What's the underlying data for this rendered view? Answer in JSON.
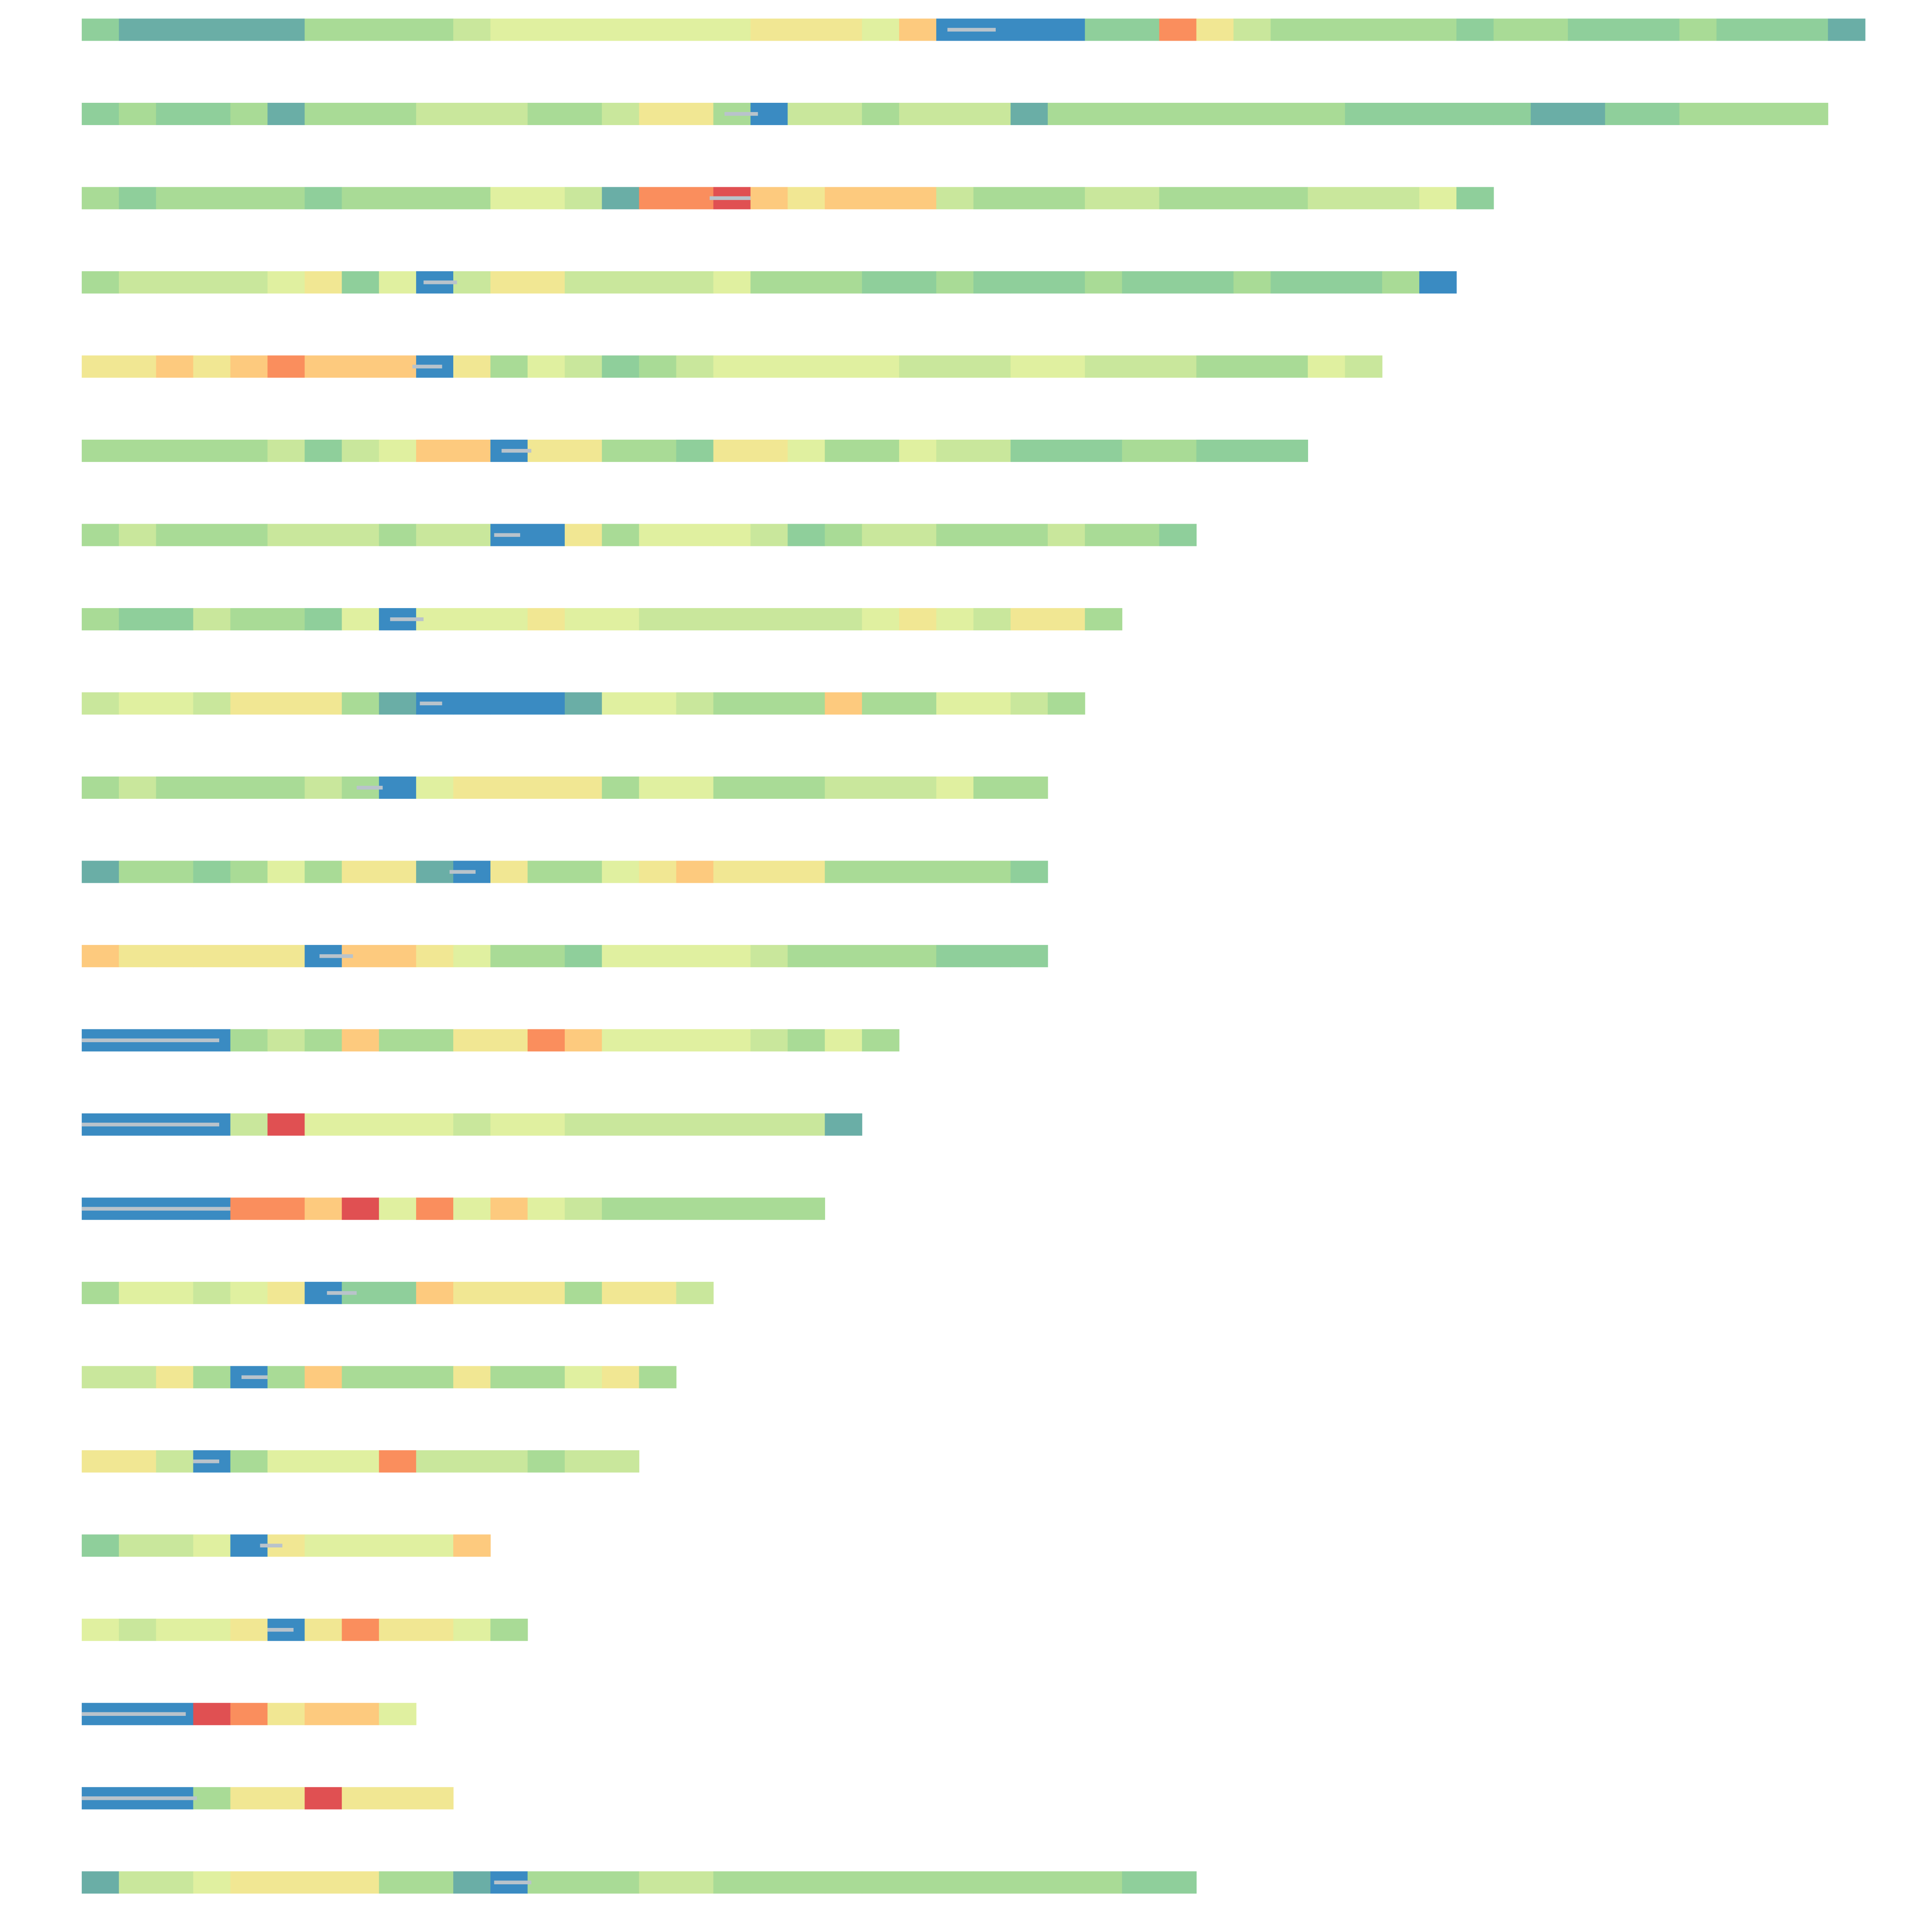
{
  "chart_data": {
    "type": "track-heatmap",
    "colors": [
      "#3a8bc2",
      "#6aaea6",
      "#8fcf9b",
      "#a9db96",
      "#c9e79c",
      "#e0f0a0",
      "#f1e793",
      "#fdca7e",
      "#fa8e5d",
      "#e05052"
    ],
    "rows": [
      {
        "values": [
          3,
          2,
          2,
          2,
          2,
          2,
          4,
          4,
          4,
          4,
          5,
          6,
          6,
          6,
          6,
          6,
          6,
          6,
          7,
          7,
          7,
          6,
          8,
          1,
          1,
          1,
          1,
          3,
          3,
          9,
          7,
          5,
          4,
          4,
          4,
          4,
          4,
          3,
          4,
          4,
          3,
          3,
          3,
          4,
          3,
          3,
          3,
          2
        ],
        "band": [
          23.3,
          24.6
        ]
      },
      {
        "values": [
          3,
          4,
          3,
          3,
          4,
          2,
          4,
          4,
          4,
          5,
          5,
          5,
          4,
          4,
          5,
          7,
          7,
          4,
          1,
          5,
          5,
          4,
          5,
          5,
          5,
          2,
          4,
          4,
          4,
          4,
          4,
          4,
          4,
          4,
          3,
          3,
          3,
          3,
          3,
          2,
          2,
          3,
          3,
          4,
          4,
          4,
          4
        ],
        "band": [
          17.3,
          18.2
        ]
      },
      {
        "values": [
          4,
          3,
          4,
          4,
          4,
          4,
          3,
          4,
          4,
          4,
          4,
          6,
          6,
          5,
          2,
          9,
          9,
          10,
          8,
          7,
          8,
          8,
          8,
          5,
          4,
          4,
          4,
          5,
          5,
          4,
          4,
          4,
          4,
          5,
          5,
          5,
          6,
          3
        ],
        "band": [
          16.9,
          18.0
        ]
      },
      {
        "values": [
          4,
          5,
          5,
          5,
          5,
          6,
          7,
          3,
          6,
          1,
          5,
          7,
          7,
          5,
          5,
          5,
          5,
          6,
          4,
          4,
          4,
          3,
          3,
          4,
          3,
          3,
          3,
          4,
          3,
          3,
          3,
          4,
          3,
          3,
          3,
          4,
          1
        ],
        "band": [
          9.2,
          10.1
        ]
      },
      {
        "values": [
          7,
          7,
          8,
          7,
          8,
          9,
          8,
          8,
          8,
          1,
          7,
          4,
          6,
          5,
          3,
          4,
          5,
          6,
          6,
          6,
          6,
          6,
          5,
          5,
          5,
          6,
          6,
          5,
          5,
          5,
          4,
          4,
          4,
          6,
          5
        ],
        "band": [
          8.9,
          9.7
        ]
      },
      {
        "values": [
          4,
          4,
          4,
          4,
          4,
          5,
          3,
          5,
          6,
          8,
          8,
          1,
          7,
          7,
          4,
          4,
          3,
          7,
          7,
          6,
          4,
          4,
          6,
          5,
          5,
          3,
          3,
          3,
          4,
          4,
          3,
          3,
          3
        ],
        "band": [
          11.3,
          12.1
        ]
      },
      {
        "values": [
          4,
          5,
          4,
          4,
          4,
          5,
          5,
          5,
          4,
          5,
          5,
          1,
          1,
          7,
          4,
          6,
          6,
          6,
          5,
          3,
          4,
          5,
          5,
          4,
          4,
          4,
          5,
          4,
          4,
          3
        ],
        "band": [
          11.1,
          11.8
        ]
      },
      {
        "values": [
          4,
          3,
          3,
          5,
          4,
          4,
          3,
          6,
          1,
          6,
          6,
          6,
          7,
          6,
          6,
          5,
          5,
          5,
          5,
          5,
          5,
          6,
          7,
          6,
          5,
          7,
          7,
          4
        ],
        "band": [
          8.3,
          9.2
        ]
      },
      {
        "values": [
          5,
          6,
          6,
          5,
          7,
          7,
          7,
          4,
          2,
          1,
          1,
          1,
          1,
          2,
          6,
          6,
          5,
          4,
          4,
          4,
          8,
          4,
          4,
          6,
          6,
          5,
          4
        ],
        "band": [
          9.1,
          9.7
        ]
      },
      {
        "values": [
          4,
          5,
          4,
          4,
          4,
          4,
          5,
          4,
          1,
          6,
          7,
          7,
          7,
          7,
          4,
          6,
          6,
          4,
          4,
          4,
          5,
          5,
          5,
          6,
          4,
          4
        ],
        "band": [
          7.4,
          8.1
        ]
      },
      {
        "values": [
          2,
          4,
          4,
          3,
          4,
          6,
          4,
          7,
          7,
          2,
          1,
          7,
          4,
          4,
          6,
          7,
          8,
          7,
          7,
          7,
          4,
          4,
          4,
          4,
          4,
          3
        ],
        "band": [
          9.9,
          10.6
        ]
      },
      {
        "values": [
          8,
          7,
          7,
          7,
          7,
          7,
          1,
          8,
          8,
          7,
          6,
          4,
          4,
          3,
          6,
          6,
          6,
          6,
          5,
          4,
          4,
          4,
          4,
          3,
          3,
          3
        ],
        "band": [
          6.4,
          7.3
        ]
      },
      {
        "values": [
          1,
          1,
          1,
          1,
          4,
          5,
          4,
          8,
          4,
          4,
          7,
          7,
          9,
          8,
          6,
          6,
          6,
          6,
          5,
          4,
          6,
          4
        ],
        "band": [
          0,
          3.7
        ]
      },
      {
        "values": [
          1,
          1,
          1,
          1,
          5,
          10,
          6,
          6,
          6,
          6,
          5,
          6,
          6,
          5,
          5,
          5,
          5,
          5,
          5,
          5,
          2
        ],
        "band": [
          0,
          3.7
        ]
      },
      {
        "values": [
          1,
          1,
          1,
          1,
          9,
          9,
          8,
          10,
          6,
          9,
          6,
          8,
          6,
          5,
          4,
          4,
          4,
          4,
          4,
          4
        ],
        "band": [
          0,
          4
        ]
      },
      {
        "values": [
          4,
          6,
          6,
          5,
          6,
          7,
          1,
          3,
          3,
          8,
          7,
          7,
          7,
          4,
          7,
          7,
          5
        ],
        "band": [
          6.6,
          7.4
        ]
      },
      {
        "values": [
          5,
          5,
          7,
          4,
          1,
          4,
          8,
          4,
          4,
          4,
          7,
          4,
          4,
          6,
          7,
          4
        ],
        "band": [
          4.3,
          5.0
        ]
      },
      {
        "values": [
          7,
          7,
          5,
          1,
          4,
          6,
          6,
          6,
          9,
          5,
          5,
          5,
          4,
          5,
          5
        ],
        "band": [
          3.0,
          3.7
        ]
      },
      {
        "values": [
          3,
          5,
          5,
          6,
          1,
          7,
          6,
          6,
          6,
          6,
          8
        ],
        "band": [
          4.8,
          5.4
        ]
      },
      {
        "values": [
          6,
          5,
          6,
          6,
          7,
          1,
          7,
          9,
          7,
          7,
          6,
          4
        ],
        "band": [
          5.0,
          5.7
        ]
      },
      {
        "values": [
          1,
          1,
          1,
          10,
          9,
          7,
          8,
          8,
          6
        ],
        "band": [
          0,
          2.8
        ]
      },
      {
        "values": [
          1,
          1,
          1,
          4,
          7,
          7,
          10,
          7,
          7,
          7
        ],
        "band": [
          0,
          3.1
        ]
      },
      {
        "values": [
          2,
          5,
          5,
          6,
          7,
          7,
          7,
          7,
          4,
          4,
          2,
          1,
          4,
          4,
          4,
          5,
          5,
          4,
          4,
          4,
          4,
          4,
          4,
          4,
          4,
          4,
          4,
          4,
          3,
          3
        ],
        "band": [
          11.1,
          12.1
        ]
      }
    ]
  }
}
